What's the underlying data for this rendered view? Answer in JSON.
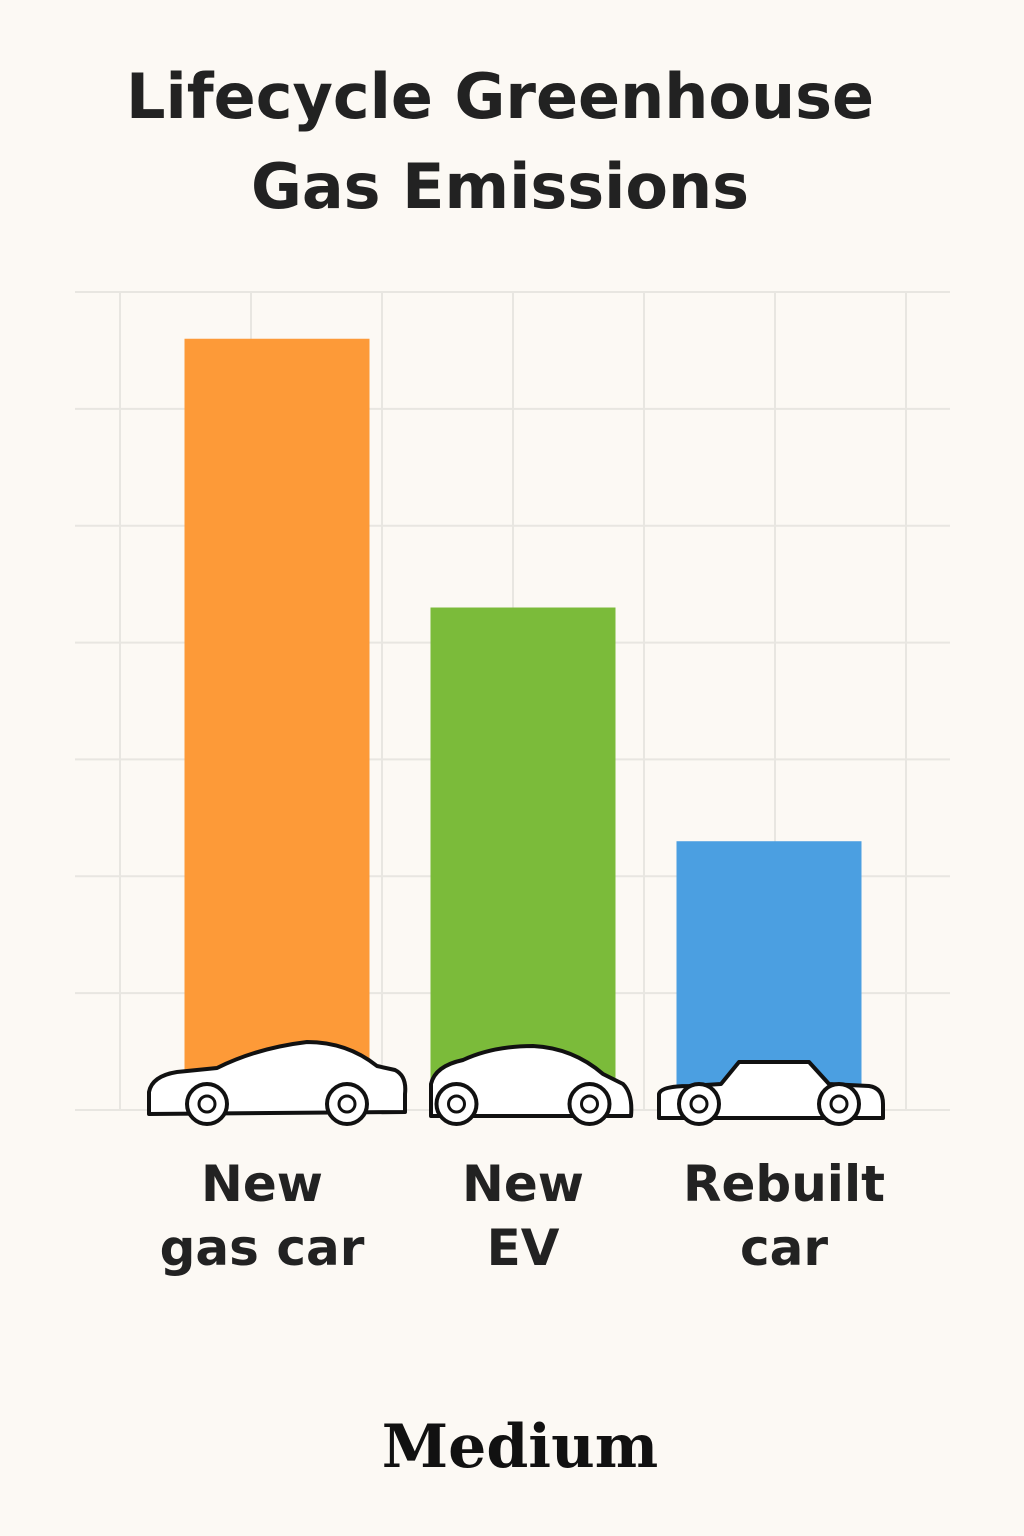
{
  "chart_data": {
    "type": "bar",
    "title": "Lifecycle Greenhouse\nGas Emissions",
    "categories": [
      "New\ngas car",
      "New\nEV",
      "Rebuilt\ncar"
    ],
    "values": [
      6.6,
      4.3,
      2.3
    ],
    "colors": [
      "#fd9a38",
      "#7bbb3a",
      "#4b9fe1"
    ],
    "ylim": [
      0,
      7
    ],
    "yticks": [
      0,
      1,
      2,
      3,
      4,
      5,
      6,
      7
    ],
    "grid": true,
    "source": "Medium"
  }
}
